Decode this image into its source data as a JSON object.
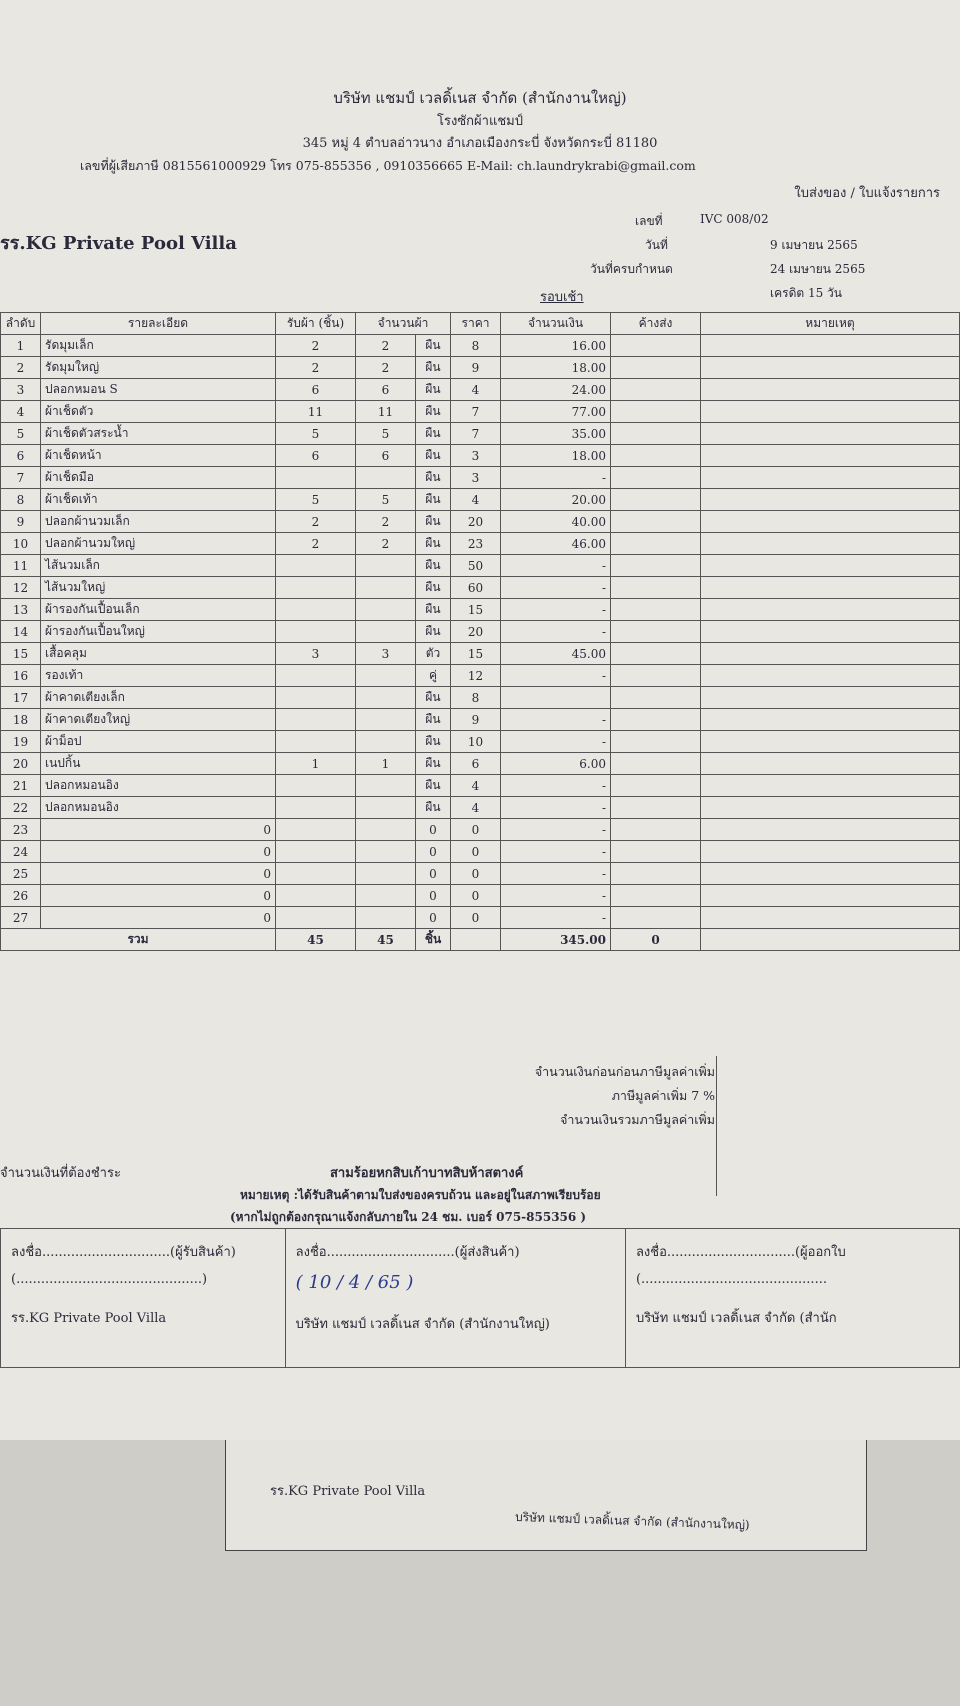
{
  "header": {
    "company": "บริษัท แชมป์ เวลดิ้เนส จำกัด (สำนักงานใหญ่)",
    "branch": "โรงซักผ้าแชมป์",
    "address": "345 หมู่ 4 ตำบลอ่าวนาง อำเภอเมืองกระบี่ จังหวัดกระบี่ 81180",
    "contact": "เลขที่ผู้เสียภาษี 0815561000929 โทร 075-855356 , 0910356665 E-Mail: ch.laundrykrabi@gmail.com",
    "doc_type": "ใบส่งของ / ใบแจ้งรายการ"
  },
  "customer": "รร.KG Private Pool Villa",
  "meta": {
    "number_label": "เลขที่",
    "number": "IVC 008/02",
    "date_label": "วันที่",
    "date": "9 เมษายน 2565",
    "due_label": "วันที่ครบกำหนด",
    "due": "24 เมษายน 2565",
    "credit": "เครดิต 15 วัน",
    "round": "รอบเช้า"
  },
  "table": {
    "columns": [
      "ลำดับ",
      "รายละเอียด",
      "รับผ้า (ชิ้น)",
      "จำนวนผ้า",
      "ราคา",
      "จำนวนเงิน",
      "ค้างส่ง",
      "หมายเหตุ"
    ],
    "rows": [
      [
        1,
        "รัดมุมเล็ก",
        2,
        2,
        "ผืน",
        8,
        "16.00",
        null
      ],
      [
        2,
        "รัดมุมใหญ่",
        2,
        2,
        "ผืน",
        9,
        "18.00",
        null
      ],
      [
        3,
        "ปลอกหมอน S",
        6,
        6,
        "ผืน",
        4,
        "24.00",
        null
      ],
      [
        4,
        "ผ้าเช็ดตัว",
        11,
        11,
        "ผืน",
        7,
        "77.00",
        null
      ],
      [
        5,
        "ผ้าเช็ดตัวสระน้ำ",
        5,
        5,
        "ผืน",
        7,
        "35.00",
        null
      ],
      [
        6,
        "ผ้าเช็ดหน้า",
        6,
        6,
        "ผืน",
        3,
        "18.00",
        null
      ],
      [
        7,
        "ผ้าเช็ดมือ",
        null,
        null,
        "ผืน",
        3,
        "-",
        null
      ],
      [
        8,
        "ผ้าเช็ดเท้า",
        5,
        5,
        "ผืน",
        4,
        "20.00",
        null
      ],
      [
        9,
        "ปลอกผ้านวมเล็ก",
        2,
        2,
        "ผืน",
        20,
        "40.00",
        null
      ],
      [
        10,
        "ปลอกผ้านวมใหญ่",
        2,
        2,
        "ผืน",
        23,
        "46.00",
        null
      ],
      [
        11,
        "ไส้นวมเล็ก",
        null,
        null,
        "ผืน",
        50,
        "-",
        null
      ],
      [
        12,
        "ไส้นวมใหญ่",
        null,
        null,
        "ผืน",
        60,
        "-",
        null
      ],
      [
        13,
        "ผ้ารองกันเปื้อนเล็ก",
        null,
        null,
        "ผืน",
        15,
        "-",
        null
      ],
      [
        14,
        "ผ้ารองกันเปื้อนใหญ่",
        null,
        null,
        "ผืน",
        20,
        "-",
        null
      ],
      [
        15,
        "เสื้อคลุม",
        3,
        3,
        "ตัว",
        15,
        "45.00",
        null
      ],
      [
        16,
        "รองเท้า",
        null,
        null,
        "คู่",
        12,
        "-",
        null
      ],
      [
        17,
        "ผ้าคาดเตียงเล็ก",
        null,
        null,
        "ผืน",
        8,
        null,
        null
      ],
      [
        18,
        "ผ้าคาดเตียงใหญ่",
        null,
        null,
        "ผืน",
        9,
        "-",
        null
      ],
      [
        19,
        "ผ้าม็อป",
        null,
        null,
        "ผืน",
        10,
        "-",
        null
      ],
      [
        20,
        "เนปกิ้น",
        1,
        1,
        "ผืน",
        6,
        "6.00",
        null
      ],
      [
        21,
        "ปลอกหมอนอิง",
        null,
        null,
        "ผืน",
        4,
        "-",
        null
      ],
      [
        22,
        "ปลอกหมอนอิง",
        null,
        null,
        "ผืน",
        4,
        "-",
        null
      ],
      [
        23,
        0,
        null,
        null,
        0,
        0,
        "-",
        null
      ],
      [
        24,
        0,
        null,
        null,
        0,
        0,
        "-",
        null
      ],
      [
        25,
        0,
        null,
        null,
        0,
        0,
        "-",
        null
      ],
      [
        26,
        0,
        null,
        null,
        0,
        0,
        "-",
        null
      ],
      [
        27,
        0,
        null,
        null,
        0,
        0,
        "-",
        null
      ]
    ],
    "total": [
      "รวม",
      45,
      45,
      "ชิ้น",
      null,
      "345.00",
      0,
      null
    ]
  },
  "summary": {
    "before_vat": "จำนวนเงินก่อนก่อนภาษีมูลค่าเพิ่ม",
    "vat": "ภาษีมูลค่าเพิ่ม 7 %",
    "with_vat": "จำนวนเงินรวมภาษีมูลค่าเพิ่ม",
    "payable_label": "จำนวนเงินที่ต้องชำระ",
    "payable_words": "สามร้อยหกสิบเก้าบาทสิบห้าสตางค์",
    "note": "หมายเหตุ :ได้รับสินค้าตามใบส่งของครบถ้วน และอยู่ในสภาพเรียบร้อย",
    "note2": "(หากไม่ถูกต้องกรุณาแจ้งกลับภายใน 24 ชม. เบอร์ 075-855356 )"
  },
  "signatures": [
    {
      "line": "ลงชื่อ...............................(ผู้รับสินค้า)",
      "date": "(.............................................)",
      "name": "รร.KG Private Pool Villa"
    },
    {
      "line": "ลงชื่อ...............................(ผู้ส่งสินค้า)",
      "date": "( 10 / 4 / 65 )",
      "name": "บริษัท แชมป์ เวลดิ้เนส จำกัด (สำนักงานใหญ่)"
    },
    {
      "line": "ลงชื่อ...............................(ผู้ออกใบ",
      "date": "(.............................................",
      "name": "บริษัท แชมป์ เวลดิ้เนส จำกัด (สำนัก"
    }
  ],
  "second_sheet": {
    "customer": "รร.KG Private Pool Villa",
    "company": "บริษัท แชมป์ เวลดิ้เนส จำกัด (สำนักงานใหญ่)"
  }
}
